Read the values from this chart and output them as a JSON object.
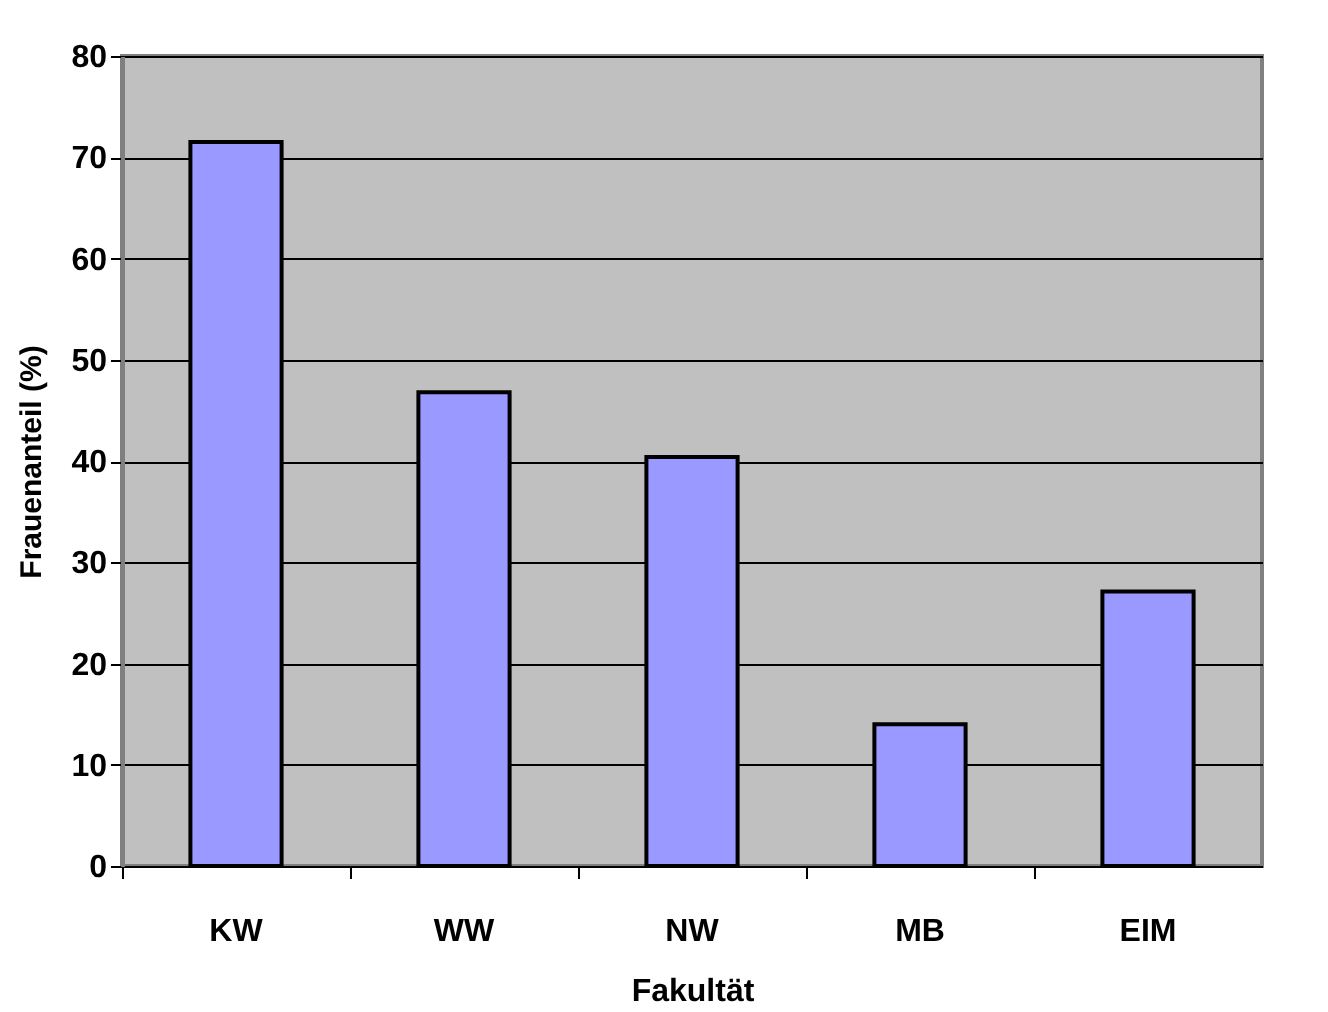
{
  "chart_data": {
    "type": "bar",
    "xlabel": "Fakultät",
    "ylabel": "Frauenanteil (%)",
    "categories": [
      "KW",
      "WW",
      "NW",
      "MB",
      "EIM"
    ],
    "series": [
      {
        "color": "#9999ff",
        "values": [
          71.5,
          46.8,
          40.4,
          14.0,
          27.1
        ]
      }
    ],
    "ylim": [
      0,
      80
    ],
    "yticks": [
      0,
      10,
      20,
      30,
      40,
      50,
      60,
      70,
      80
    ],
    "grid": "y",
    "legend": false
  }
}
